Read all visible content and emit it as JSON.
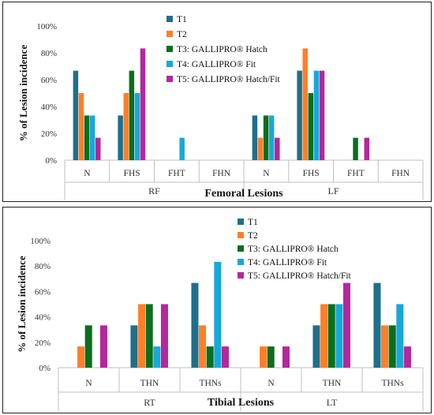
{
  "colors": {
    "T1": "#1f6f8b",
    "T2": "#ff7f27",
    "T3": "#0a6e1e",
    "T4": "#18a8d8",
    "T5": "#b5279c"
  },
  "chart_data": [
    {
      "type": "bar",
      "xlabel": "Femoral Lesions",
      "ylabel": "% of Lesion incidence",
      "ylim": [
        0,
        100
      ],
      "yticks": [
        "0%",
        "20%",
        "40%",
        "60%",
        "80%",
        "100%"
      ],
      "tick_values": [
        0,
        20,
        40,
        60,
        80,
        100
      ],
      "groups": [
        {
          "name": "RF",
          "categories": [
            "N",
            "FHS",
            "FHT",
            "FHN"
          ]
        },
        {
          "name": "LF",
          "categories": [
            "N",
            "FHS",
            "FHT",
            "FHN"
          ]
        }
      ],
      "categories": [
        "N",
        "FHS",
        "FHT",
        "FHN",
        "N",
        "FHS",
        "FHT",
        "FHN"
      ],
      "series": [
        {
          "name": "T1",
          "values": [
            66.7,
            33.3,
            0,
            0,
            33.3,
            66.7,
            0,
            0
          ]
        },
        {
          "name": "T2",
          "values": [
            50,
            50,
            0,
            0,
            16.7,
            83.3,
            0,
            0
          ]
        },
        {
          "name": "T3: GALLIPRO® Hatch",
          "values": [
            33.3,
            66.7,
            0,
            0,
            33.3,
            50,
            16.7,
            0
          ]
        },
        {
          "name": "T4: GALLIPRO® Fit",
          "values": [
            33.3,
            50,
            16.7,
            0,
            33.3,
            66.7,
            0,
            0
          ]
        },
        {
          "name": "T5: GALLIPRO® Hatch/Fit",
          "values": [
            16.7,
            83.3,
            0,
            0,
            16.7,
            66.7,
            16.7,
            0
          ]
        }
      ],
      "legend": "top"
    },
    {
      "type": "bar",
      "xlabel": "Tibial Lesions",
      "ylabel": "% of Lesion incidence",
      "ylim": [
        0,
        100
      ],
      "yticks": [
        "0%",
        "20%",
        "40%",
        "60%",
        "80%",
        "100%"
      ],
      "tick_values": [
        0,
        20,
        40,
        60,
        80,
        100
      ],
      "groups": [
        {
          "name": "RT",
          "categories": [
            "N",
            "THN",
            "THNs"
          ]
        },
        {
          "name": "LT",
          "categories": [
            "N",
            "THN",
            "THNs"
          ]
        }
      ],
      "categories": [
        "N",
        "THN",
        "THNs",
        "N",
        "THN",
        "THNs"
      ],
      "series": [
        {
          "name": "T1",
          "values": [
            0,
            33.3,
            66.7,
            0,
            33.3,
            66.7
          ]
        },
        {
          "name": "T2",
          "values": [
            16.7,
            50,
            33.3,
            16.7,
            50,
            33.3
          ]
        },
        {
          "name": "T3: GALLIPRO® Hatch",
          "values": [
            33.3,
            50,
            16.7,
            16.7,
            50,
            33.3
          ]
        },
        {
          "name": "T4: GALLIPRO® Fit",
          "values": [
            0,
            16.7,
            83.3,
            0,
            50,
            50
          ]
        },
        {
          "name": "T5: GALLIPRO® Hatch/Fit",
          "values": [
            33.3,
            50,
            16.7,
            16.7,
            66.7,
            16.7
          ]
        }
      ],
      "legend": "top"
    }
  ]
}
